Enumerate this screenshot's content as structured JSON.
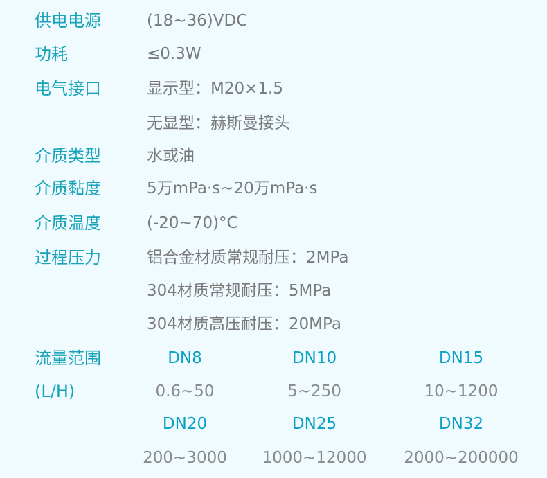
{
  "colors": {
    "background": "#effbfe",
    "label": "#17a3b9",
    "value": "#7a7a7a",
    "dn": "#0b9fc6"
  },
  "specs": [
    {
      "label": "供电电源",
      "values": [
        "(18~36)VDC"
      ]
    },
    {
      "label": "功耗",
      "values": [
        "≤0.3W"
      ]
    },
    {
      "label": "电气接口",
      "values": [
        "显示型：M20×1.5",
        "无显型：赫斯曼接头"
      ]
    },
    {
      "label": "介质类型",
      "values": [
        "水或油"
      ]
    },
    {
      "label": "介质黏度",
      "values": [
        "5万mPa·s~20万mPa·s"
      ]
    },
    {
      "label": "介质温度",
      "values": [
        "(-20~70)°C"
      ]
    },
    {
      "label": "过程压力",
      "values": [
        "铝合金材质常规耐压：2MPa",
        "304材质常规耐压：5MPa",
        "304材质高压耐压：20MPa"
      ]
    }
  ],
  "flow": {
    "label": "流量范围",
    "unit": "(L/H)",
    "rows": [
      [
        {
          "dn": "DN8",
          "range": "0.6~50"
        },
        {
          "dn": "DN10",
          "range": "5~250"
        },
        {
          "dn": "DN15",
          "range": "10~1200"
        }
      ],
      [
        {
          "dn": "DN20",
          "range": "200~3000"
        },
        {
          "dn": "DN25",
          "range": "1000~12000"
        },
        {
          "dn": "DN32",
          "range": "2000~200000"
        }
      ]
    ]
  }
}
